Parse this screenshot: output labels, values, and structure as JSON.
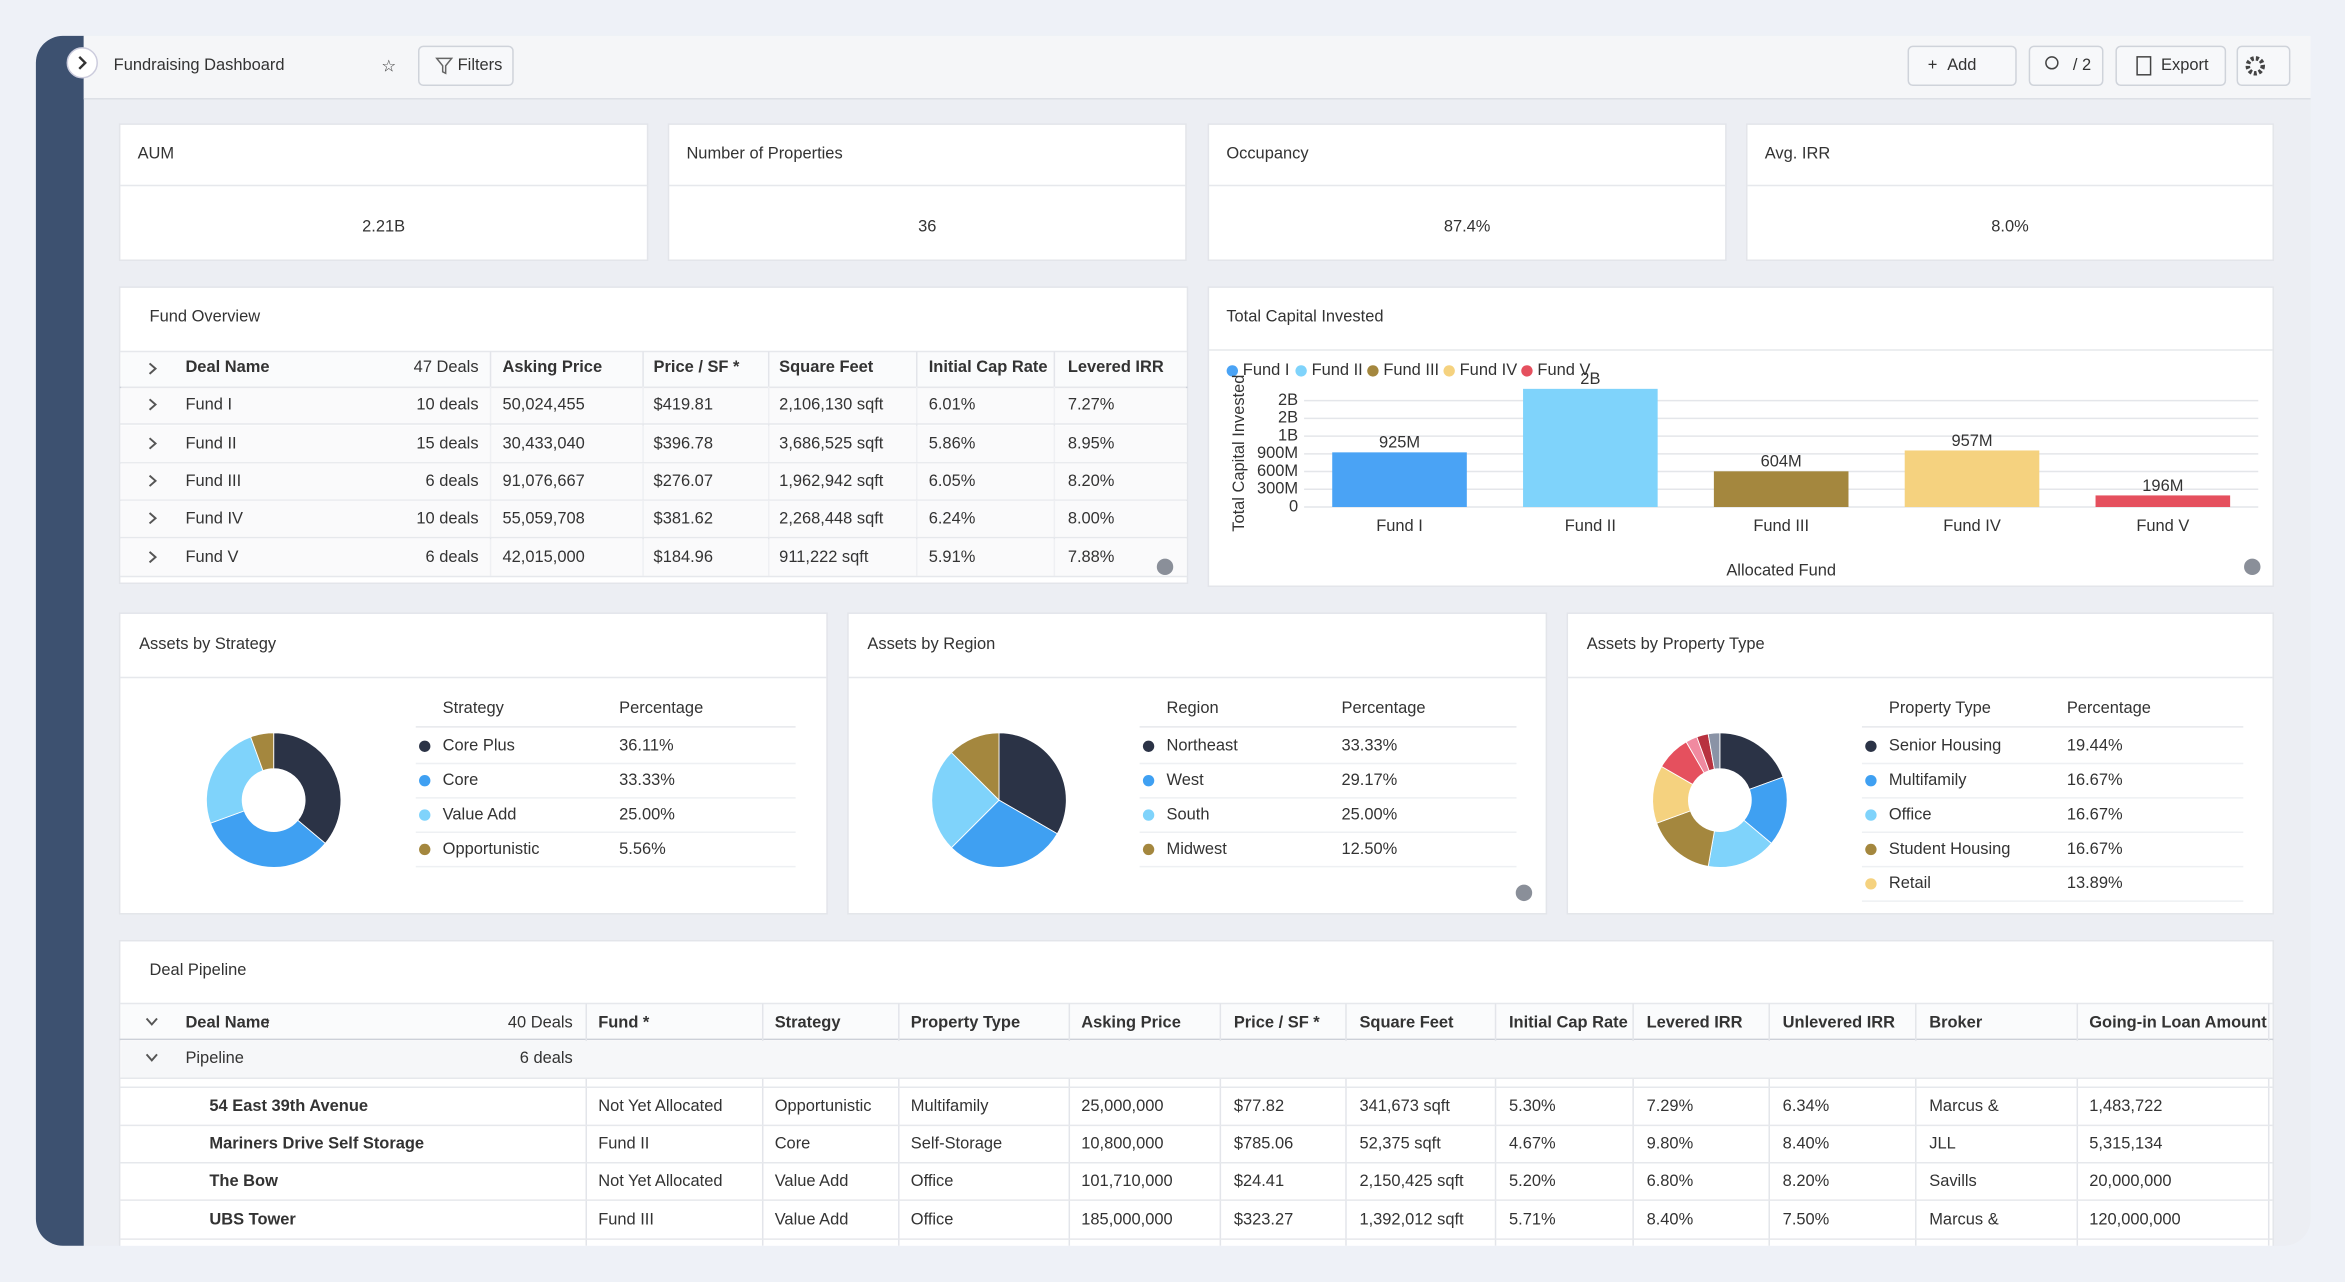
{
  "header": {
    "title": "Fundraising Dashboard",
    "filters": "Filters",
    "add": "Add",
    "users": "/ 2",
    "export": "Export"
  },
  "kpis": [
    {
      "label": "AUM",
      "value": "2.21B"
    },
    {
      "label": "Number of Properties",
      "value": "36"
    },
    {
      "label": "Occupancy",
      "value": "87.4%"
    },
    {
      "label": "Avg. IRR",
      "value": "8.0%"
    }
  ],
  "fund_overview": {
    "title": "Fund Overview",
    "count": "47 Deals",
    "columns": [
      "Deal Name",
      "Asking Price",
      "Price / SF *",
      "Square Feet",
      "Initial Cap Rate",
      "Levered IRR"
    ],
    "rows": [
      [
        "Fund I",
        "10 deals",
        "50,024,455",
        "$419.81",
        "2,106,130 sqft",
        "6.01%",
        "7.27%"
      ],
      [
        "Fund II",
        "15 deals",
        "30,433,040",
        "$396.78",
        "3,686,525 sqft",
        "5.86%",
        "8.95%"
      ],
      [
        "Fund III",
        "6 deals",
        "91,076,667",
        "$276.07",
        "1,962,942 sqft",
        "6.05%",
        "8.20%"
      ],
      [
        "Fund IV",
        "10 deals",
        "55,059,708",
        "$381.62",
        "2,268,448 sqft",
        "6.24%",
        "8.00%"
      ],
      [
        "Fund V",
        "6 deals",
        "42,015,000",
        "$184.96",
        "911,222 sqft",
        "5.91%",
        "7.88%"
      ]
    ]
  },
  "chart_data": [
    {
      "type": "bar",
      "title": "Total Capital Invested",
      "categories": [
        "Fund I",
        "Fund II",
        "Fund III",
        "Fund IV",
        "Fund V"
      ],
      "values": [
        925000000,
        2000000000,
        604000000,
        957000000,
        196000000
      ],
      "value_labels": [
        "925M",
        "2B",
        "604M",
        "957M",
        "196M"
      ],
      "colors": [
        "#4aa3f5",
        "#7fd3fb",
        "#a4873e",
        "#f5d27f",
        "#e5505e"
      ],
      "ylim": [
        0,
        2000000000
      ],
      "yticks": [
        0,
        {
          "value": 300000000,
          "label": "300M"
        },
        {
          "value": 600000000,
          "label": "600M"
        },
        {
          "value": 900000000,
          "label": "900M"
        },
        {
          "value": 1200000000,
          "label": "1B"
        },
        {
          "value": 1500000000,
          "label": "2B"
        },
        {
          "value": 1800000000,
          "label": "2B"
        }
      ],
      "ylabel": "Total Capital Invested",
      "xlabel": "Allocated Fund",
      "grid": true,
      "legend": "top-left"
    },
    {
      "type": "pie",
      "title": "Assets by Strategy",
      "columns": [
        "Strategy",
        "Percentage"
      ],
      "categories": [
        "Core Plus",
        "Core",
        "Value Add",
        "Opportunistic"
      ],
      "values": [
        36.11,
        33.33,
        25.0,
        5.56
      ],
      "value_labels": [
        "36.11%",
        "33.33%",
        "25.00%",
        "5.56%"
      ],
      "colors": [
        "#2b3346",
        "#3fa0f2",
        "#7fd3fb",
        "#a4873e"
      ],
      "donut": true
    },
    {
      "type": "pie",
      "title": "Assets by Region",
      "columns": [
        "Region",
        "Percentage"
      ],
      "categories": [
        "Northeast",
        "West",
        "South",
        "Midwest"
      ],
      "values": [
        33.33,
        29.17,
        25.0,
        12.5
      ],
      "value_labels": [
        "33.33%",
        "29.17%",
        "25.00%",
        "12.50%"
      ],
      "colors": [
        "#2b3346",
        "#3fa0f2",
        "#7fd3fb",
        "#a4873e"
      ],
      "donut": false
    },
    {
      "type": "pie",
      "title": "Assets by Property Type",
      "columns": [
        "Property Type",
        "Percentage"
      ],
      "categories": [
        "Senior Housing",
        "Multifamily",
        "Office",
        "Student Housing",
        "Retail",
        null,
        null,
        null,
        null
      ],
      "values": [
        19.44,
        16.67,
        16.67,
        16.67,
        13.89,
        8.33,
        2.78,
        2.78,
        2.78
      ],
      "value_labels": [
        "19.44%",
        "16.67%",
        "16.67%",
        "16.67%",
        "13.89%",
        null,
        null,
        null,
        null
      ],
      "colors": [
        "#2b3346",
        "#3fa0f2",
        "#7fd3fb",
        "#a4873e",
        "#f5d27f",
        "#e5505e",
        "#f08aa0",
        "#b8323f",
        "#8a93a6"
      ],
      "donut": true
    }
  ],
  "deal_pipeline": {
    "title": "Deal Pipeline",
    "count": "40 Deals",
    "columns": [
      "Deal Name",
      "Fund *",
      "Strategy",
      "Property Type",
      "Asking Price",
      "Price / SF *",
      "Square Feet",
      "Initial Cap Rate",
      "Levered IRR",
      "Unlevered IRR",
      "Broker",
      "Going-in Loan Amount"
    ],
    "group": {
      "name": "Pipeline",
      "count": "6 deals"
    },
    "rows": [
      [
        "54 East 39th Avenue",
        "Not Yet Allocated",
        "Opportunistic",
        "Multifamily",
        "25,000,000",
        "$77.82",
        "341,673 sqft",
        "5.30%",
        "7.29%",
        "6.34%",
        "Marcus &",
        "1,483,722"
      ],
      [
        "Mariners Drive Self Storage",
        "Fund II",
        "Core",
        "Self-Storage",
        "10,800,000",
        "$785.06",
        "52,375 sqft",
        "4.67%",
        "9.80%",
        "8.40%",
        "JLL",
        "5,315,134"
      ],
      [
        "The Bow",
        "Not Yet Allocated",
        "Value Add",
        "Office",
        "101,710,000",
        "$24.41",
        "2,150,425 sqft",
        "5.20%",
        "6.80%",
        "8.20%",
        "Savills",
        "20,000,000"
      ],
      [
        "UBS Tower",
        "Fund III",
        "Value Add",
        "Office",
        "185,000,000",
        "$323.27",
        "1,392,012 sqft",
        "5.71%",
        "8.40%",
        "7.50%",
        "Marcus &",
        "120,000,000"
      ]
    ]
  }
}
